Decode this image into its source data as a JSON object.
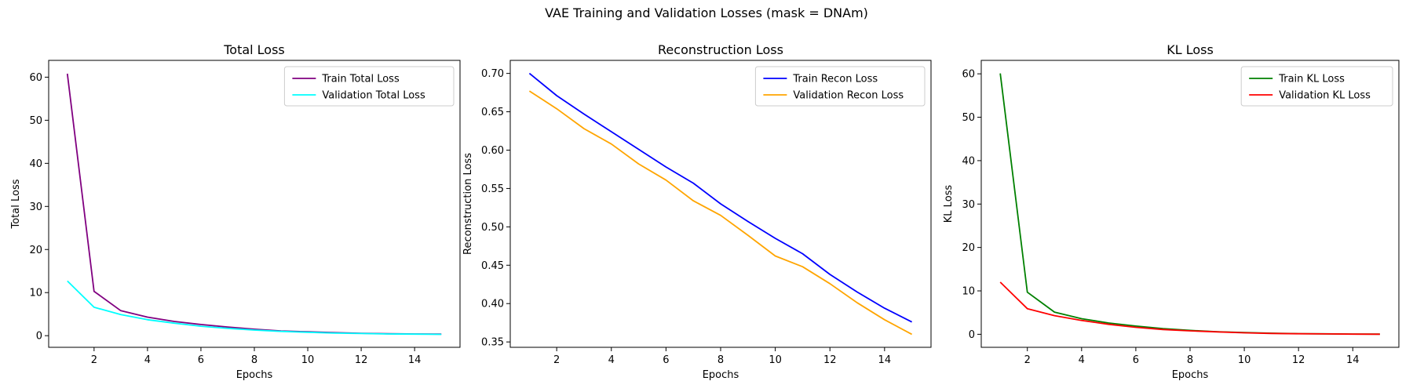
{
  "suptitle": "VAE Training and Validation Losses (mask = DNAm)",
  "chart_data": [
    {
      "type": "line",
      "title": "Total Loss",
      "xlabel": "Epochs",
      "ylabel": "Total Loss",
      "xlim": [
        0.3,
        15.7
      ],
      "ylim": [
        -2.7,
        63.9
      ],
      "xticks": [
        2,
        4,
        6,
        8,
        10,
        12,
        14
      ],
      "yticks": [
        0,
        10,
        20,
        30,
        40,
        50,
        60
      ],
      "grid": false,
      "legend_position": "top-right",
      "x": [
        1,
        2,
        3,
        4,
        5,
        6,
        7,
        8,
        9,
        10,
        11,
        12,
        13,
        14,
        15
      ],
      "series": [
        {
          "name": "Train Total Loss",
          "color": "#800080",
          "values": [
            60.8,
            10.3,
            5.8,
            4.3,
            3.3,
            2.6,
            2.0,
            1.5,
            1.1,
            0.9,
            0.7,
            0.55,
            0.45,
            0.4,
            0.35
          ]
        },
        {
          "name": "Validation Total Loss",
          "color": "#00ffff",
          "values": [
            12.7,
            6.6,
            4.9,
            3.7,
            2.9,
            2.2,
            1.7,
            1.3,
            1.0,
            0.8,
            0.6,
            0.5,
            0.4,
            0.35,
            0.3
          ]
        }
      ]
    },
    {
      "type": "line",
      "title": "Reconstruction Loss",
      "xlabel": "Epochs",
      "ylabel": "Reconstruction Loss",
      "xlim": [
        0.3,
        15.7
      ],
      "ylim": [
        0.343,
        0.717
      ],
      "xticks": [
        2,
        4,
        6,
        8,
        10,
        12,
        14
      ],
      "yticks": [
        0.35,
        0.4,
        0.45,
        0.5,
        0.55,
        0.6,
        0.65,
        0.7
      ],
      "ytick_labels": [
        "0.35",
        "0.40",
        "0.45",
        "0.50",
        "0.55",
        "0.60",
        "0.65",
        "0.70"
      ],
      "grid": false,
      "legend_position": "top-right",
      "x": [
        1,
        2,
        3,
        4,
        5,
        6,
        7,
        8,
        9,
        10,
        11,
        12,
        13,
        14,
        15
      ],
      "series": [
        {
          "name": "Train Recon Loss",
          "color": "#0000ff",
          "values": [
            0.7,
            0.671,
            0.647,
            0.624,
            0.601,
            0.578,
            0.557,
            0.53,
            0.507,
            0.485,
            0.465,
            0.438,
            0.415,
            0.394,
            0.376
          ]
        },
        {
          "name": "Validation Recon Loss",
          "color": "#ffa500",
          "values": [
            0.677,
            0.654,
            0.628,
            0.608,
            0.582,
            0.561,
            0.534,
            0.515,
            0.489,
            0.462,
            0.448,
            0.426,
            0.401,
            0.379,
            0.36
          ]
        }
      ]
    },
    {
      "type": "line",
      "title": "KL Loss",
      "xlabel": "Epochs",
      "ylabel": "KL Loss",
      "xlim": [
        0.3,
        15.7
      ],
      "ylim": [
        -3.0,
        63.1
      ],
      "xticks": [
        2,
        4,
        6,
        8,
        10,
        12,
        14
      ],
      "yticks": [
        0,
        10,
        20,
        30,
        40,
        50,
        60
      ],
      "grid": false,
      "legend_position": "top-right",
      "x": [
        1,
        2,
        3,
        4,
        5,
        6,
        7,
        8,
        9,
        10,
        11,
        12,
        13,
        14,
        15
      ],
      "series": [
        {
          "name": "Train KL Loss",
          "color": "#008000",
          "values": [
            60.1,
            9.7,
            5.1,
            3.6,
            2.6,
            1.9,
            1.3,
            0.9,
            0.6,
            0.4,
            0.25,
            0.15,
            0.1,
            0.05,
            0.03
          ]
        },
        {
          "name": "Validation KL Loss",
          "color": "#ff0000",
          "values": [
            12.0,
            5.9,
            4.3,
            3.2,
            2.3,
            1.6,
            1.1,
            0.8,
            0.55,
            0.35,
            0.2,
            0.12,
            0.08,
            0.04,
            0.02
          ]
        }
      ]
    }
  ]
}
